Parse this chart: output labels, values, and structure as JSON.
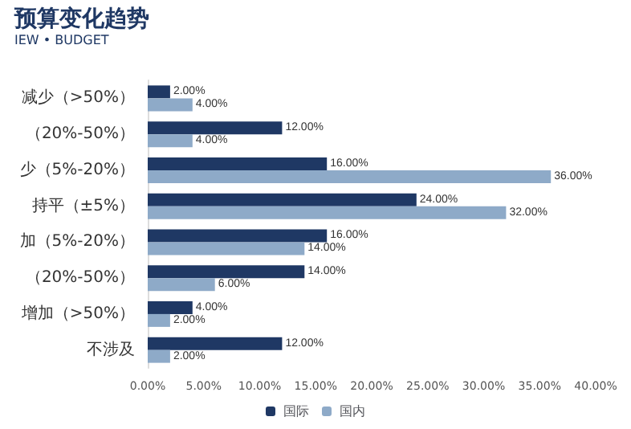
{
  "chart_data": {
    "type": "bar",
    "orientation": "horizontal",
    "title": "预算变化趋势",
    "subtitle": "IEW • BUDGET",
    "categories": [
      "减少（>50%）",
      "（20%-50%）",
      "少（5%-20%）",
      "持平（±5%）",
      "加（5%-20%）",
      "（20%-50%）",
      "增加（>50%）",
      "不涉及"
    ],
    "series": [
      {
        "name": "国际",
        "color": "#1f3864",
        "values": [
          2,
          12,
          16,
          24,
          16,
          14,
          4,
          12
        ],
        "value_labels": [
          "2.00%",
          "12.00%",
          "16.00%",
          "24.00%",
          "16.00%",
          "14.00%",
          "4.00%",
          "12.00%"
        ]
      },
      {
        "name": "国内",
        "color": "#8eaac8",
        "values": [
          4,
          4,
          36,
          32,
          14,
          6,
          2,
          2
        ],
        "value_labels": [
          "4.00%",
          "4.00%",
          "36.00%",
          "32.00%",
          "14.00%",
          "6.00%",
          "2.00%",
          "2.00%"
        ]
      }
    ],
    "xlim": [
      0,
      40
    ],
    "xticks": [
      {
        "value": 0,
        "label": "0.00%"
      },
      {
        "value": 5,
        "label": "5.00%"
      },
      {
        "value": 10,
        "label": "10.00%"
      },
      {
        "value": 15,
        "label": "15.00%"
      },
      {
        "value": 20,
        "label": "20.00%"
      },
      {
        "value": 25,
        "label": "25.00%"
      },
      {
        "value": 30,
        "label": "30.00%"
      },
      {
        "value": 35,
        "label": "35.00%"
      },
      {
        "value": 40,
        "label": "40.00%"
      }
    ],
    "grid": false,
    "legend": "bottom"
  }
}
